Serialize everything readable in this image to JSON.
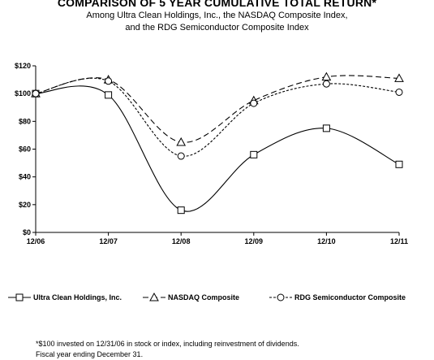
{
  "title": "COMPARISON OF 5 YEAR CUMULATIVE TOTAL RETURN*",
  "subtitle_line1": "Among Ultra Clean Holdings, Inc., the NASDAQ Composite Index,",
  "subtitle_line2": "and the RDG Semiconductor Composite Index",
  "footnote_line1": "*$100 invested on 12/31/06 in stock or index, including reinvestment of dividends.",
  "footnote_line2": "Fiscal year ending December 31.",
  "chart_data": {
    "type": "line",
    "categories": [
      "12/06",
      "12/07",
      "12/08",
      "12/09",
      "12/10",
      "12/11"
    ],
    "ylim": [
      0,
      120
    ],
    "yticks": [
      0,
      20,
      40,
      60,
      80,
      100,
      120
    ],
    "ytick_labels": [
      "$0",
      "$20",
      "$40",
      "$60",
      "$80",
      "$100",
      "$120"
    ],
    "grid": false,
    "legend_position": "bottom",
    "series": [
      {
        "name": "Ultra Clean Holdings, Inc.",
        "marker": "square",
        "line": "solid",
        "values": [
          100,
          99,
          16,
          56,
          75,
          49
        ]
      },
      {
        "name": "NASDAQ Composite",
        "marker": "triangle",
        "line": "dashed",
        "values": [
          100,
          110,
          65,
          95,
          112,
          111
        ]
      },
      {
        "name": "RDG Semiconductor Composite",
        "marker": "circle",
        "line": "dotted",
        "values": [
          100,
          109,
          55,
          93,
          107,
          101
        ]
      }
    ]
  }
}
